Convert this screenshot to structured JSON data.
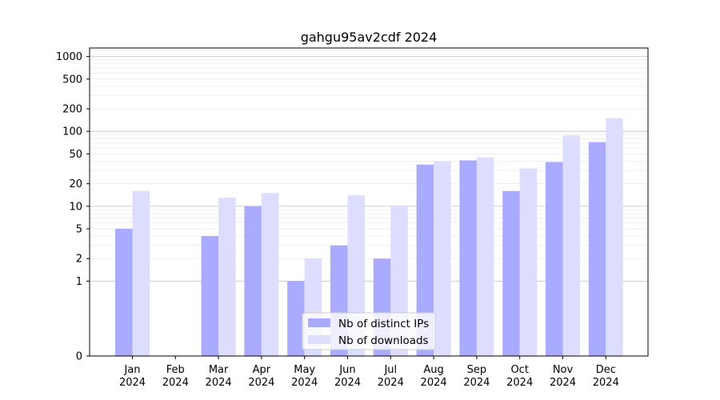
{
  "chart_data": {
    "type": "bar",
    "title": "gahgu95av2cdf 2024",
    "xlabel": "",
    "ylabel": "",
    "categories": [
      [
        "Jan",
        "2024"
      ],
      [
        "Feb",
        "2024"
      ],
      [
        "Mar",
        "2024"
      ],
      [
        "Apr",
        "2024"
      ],
      [
        "May",
        "2024"
      ],
      [
        "Jun",
        "2024"
      ],
      [
        "Jul",
        "2024"
      ],
      [
        "Aug",
        "2024"
      ],
      [
        "Sep",
        "2024"
      ],
      [
        "Oct",
        "2024"
      ],
      [
        "Nov",
        "2024"
      ],
      [
        "Dec",
        "2024"
      ]
    ],
    "series": [
      {
        "name": "Nb of distinct IPs",
        "color": "#aaaaff",
        "values": [
          5,
          0,
          4,
          10,
          1,
          3,
          2,
          36,
          41,
          16,
          39,
          72
        ]
      },
      {
        "name": "Nb of downloads",
        "color": "#ddddff",
        "values": [
          16,
          0,
          13,
          15,
          2,
          14,
          10,
          40,
          45,
          32,
          88,
          150
        ]
      }
    ],
    "y_scale": "symlog",
    "ylim": [
      0,
      1300
    ],
    "y_ticks": [
      0,
      1,
      2,
      5,
      10,
      20,
      50,
      100,
      200,
      500,
      1000
    ],
    "y_tick_labels": [
      "0",
      "1",
      "2",
      "5",
      "10",
      "20",
      "50",
      "100",
      "200",
      "500",
      "1000"
    ],
    "grid": true,
    "legend": "bottom-center"
  }
}
